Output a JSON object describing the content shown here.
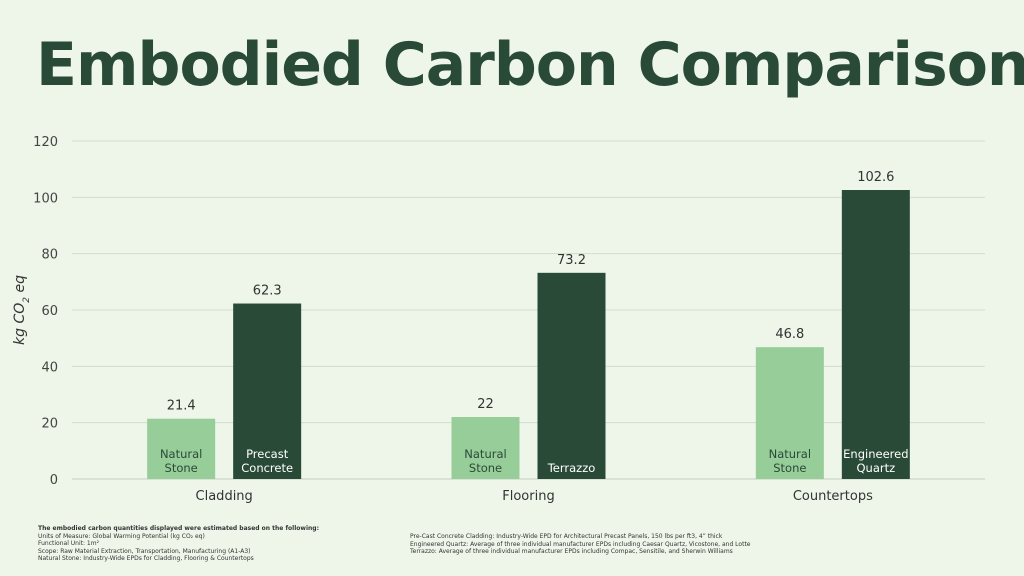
{
  "colors": {
    "background": "#eef6e9",
    "title": "#2a4a38",
    "light_bar": "#96cd98",
    "dark_bar": "#2a4a38",
    "grid": "#d3dccf"
  },
  "title": "Embodied Carbon Comparison",
  "chart_data": {
    "type": "bar",
    "title": "Embodied Carbon Comparison",
    "ylabel": "kg CO2 eq",
    "ylim": [
      0,
      120
    ],
    "yticks": [
      0,
      20,
      40,
      60,
      80,
      100,
      120
    ],
    "grid": true,
    "categories": [
      "Cladding",
      "Flooring",
      "Countertops"
    ],
    "bars": [
      {
        "category": "Cladding",
        "label": [
          "Natural",
          "Stone"
        ],
        "value": 21.4,
        "value_label": "21.4",
        "color": "#96cd98",
        "label_color": "#2a4a38"
      },
      {
        "category": "Cladding",
        "label": [
          "Precast",
          "Concrete"
        ],
        "value": 62.3,
        "value_label": "62.3",
        "color": "#2a4a38",
        "label_color": "#ffffff"
      },
      {
        "category": "Flooring",
        "label": [
          "Natural",
          "Stone"
        ],
        "value": 22,
        "value_label": "22",
        "color": "#96cd98",
        "label_color": "#2a4a38"
      },
      {
        "category": "Flooring",
        "label": [
          "Terrazzo"
        ],
        "value": 73.2,
        "value_label": "73.2",
        "color": "#2a4a38",
        "label_color": "#ffffff"
      },
      {
        "category": "Countertops",
        "label": [
          "Natural",
          "Stone"
        ],
        "value": 46.8,
        "value_label": "46.8",
        "color": "#96cd98",
        "label_color": "#2a4a38"
      },
      {
        "category": "Countertops",
        "label": [
          "Engineered",
          "Quartz"
        ],
        "value": 102.6,
        "value_label": "102.6",
        "color": "#2a4a38",
        "label_color": "#ffffff"
      }
    ]
  },
  "notes": {
    "heading": "The embodied carbon quantities displayed were estimated based on the following:",
    "left": [
      "Units of Measure: Global Warming Potential (kg CO₂ eq)",
      "Functional Unit: 1m²",
      "Scope: Raw Material Extraction, Transportation, Manufacturing (A1-A3)",
      "Natural Stone: Industry-Wide EPDs for Cladding, Flooring & Countertops"
    ],
    "right": [
      "Pre-Cast Concrete Cladding: Industry-Wide EPD for Architectural Precast Panels, 150 lbs per ft3, 4” thick",
      "Engineered Quartz: Average of three individual manufacturer EPDs including Caesar Quartz, Vicostone, and Lotte",
      "Terrazzo: Average of three individual manufacturer EPDs including Compac, Sensitile, and Sherwin Williams"
    ]
  }
}
